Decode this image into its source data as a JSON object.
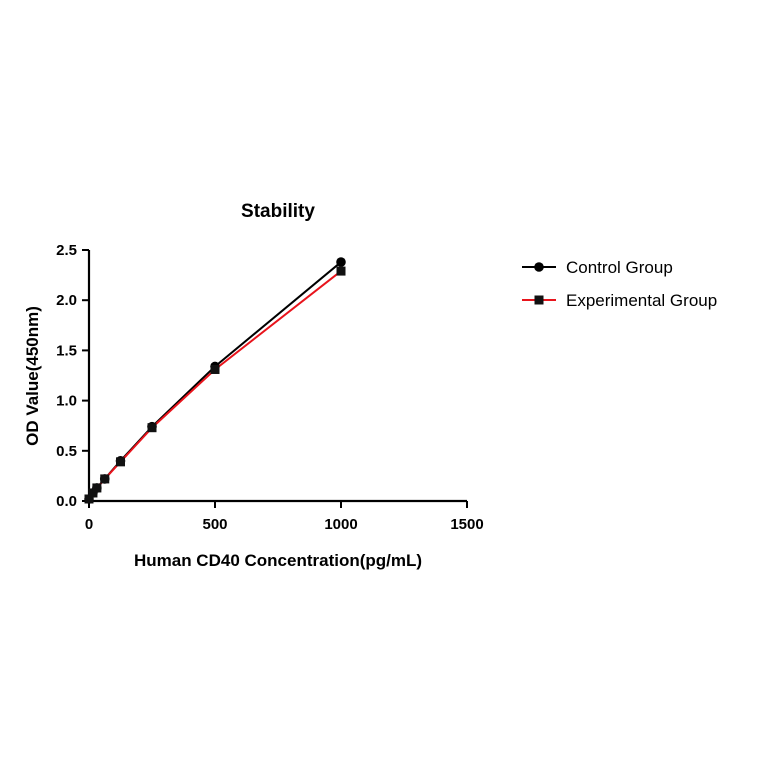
{
  "chart_data": {
    "type": "line",
    "title": "Stability",
    "xlabel": "Human CD40 Concentration(pg/mL)",
    "ylabel": "OD Value(450nm)",
    "xlim": [
      0,
      1500
    ],
    "ylim": [
      0,
      2.5
    ],
    "xticks": [
      0,
      500,
      1000,
      1500
    ],
    "yticks": [
      0.0,
      0.5,
      1.0,
      1.5,
      2.0,
      2.5
    ],
    "xtick_labels": [
      "0",
      "500",
      "1000",
      "1500"
    ],
    "ytick_labels": [
      "0.0",
      "0.5",
      "1.0",
      "1.5",
      "2.0",
      "2.5"
    ],
    "grid": false,
    "legend_position": "right",
    "series": [
      {
        "name": "Control Group",
        "color": "#000000",
        "marker": "circle",
        "x": [
          0,
          15.6,
          31.25,
          62.5,
          125,
          250,
          500,
          1000
        ],
        "y": [
          0.02,
          0.08,
          0.13,
          0.22,
          0.4,
          0.74,
          1.34,
          2.38
        ]
      },
      {
        "name": "Experimental Group",
        "color": "#e8141c",
        "marker": "square",
        "x": [
          0,
          15.6,
          31.25,
          62.5,
          125,
          250,
          500,
          1000
        ],
        "y": [
          0.02,
          0.08,
          0.13,
          0.22,
          0.39,
          0.73,
          1.31,
          2.29
        ]
      }
    ]
  }
}
